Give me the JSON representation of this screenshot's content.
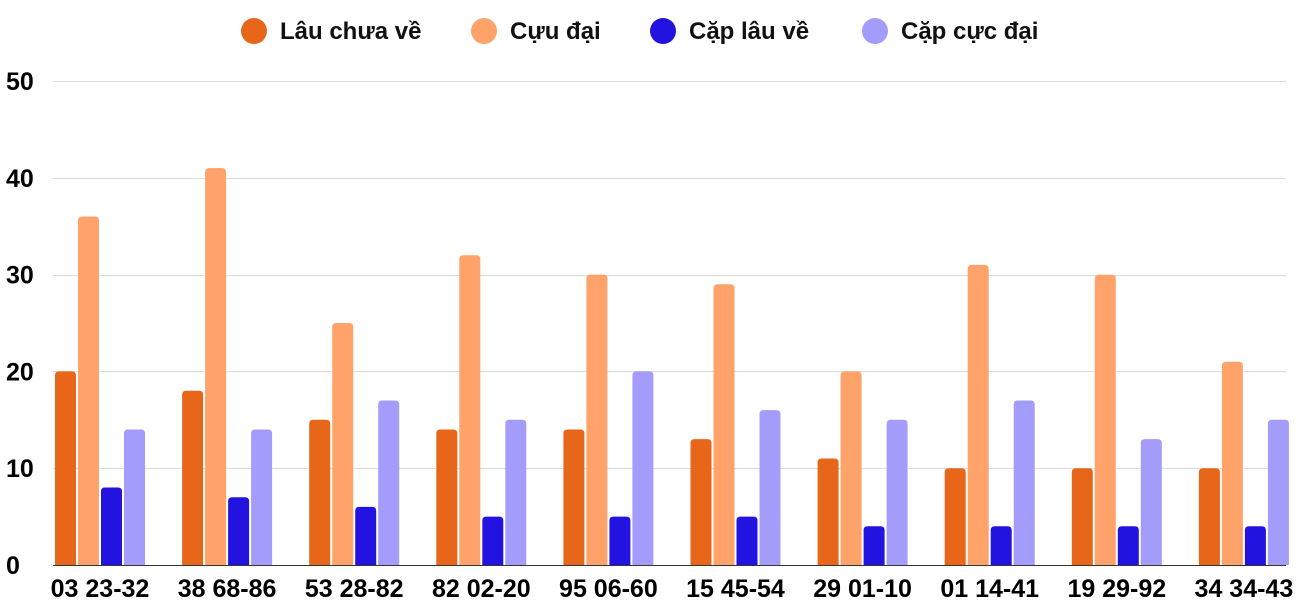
{
  "chart_data": {
    "type": "bar",
    "title": "",
    "xlabel": "",
    "ylabel": "",
    "ylim": [
      0,
      50
    ],
    "yticks": [
      0,
      10,
      20,
      30,
      40,
      50
    ],
    "grid": true,
    "legend_position": "top-center",
    "categories": [
      "03 23-32",
      "38 68-86",
      "53 28-82",
      "82 02-20",
      "95 06-60",
      "15 45-54",
      "29 01-10",
      "01 14-41",
      "19 29-92",
      "34 34-43"
    ],
    "series": [
      {
        "name": "Lâu chưa về",
        "color": "#e8661a",
        "values": [
          20,
          18,
          15,
          14,
          14,
          13,
          11,
          10,
          10,
          10
        ]
      },
      {
        "name": "Cựu đại",
        "color": "#ffa36b",
        "values": [
          36,
          41,
          25,
          32,
          30,
          29,
          20,
          31,
          30,
          21
        ]
      },
      {
        "name": "Cặp lâu về",
        "color": "#2313e0",
        "values": [
          8,
          7,
          6,
          5,
          5,
          5,
          4,
          4,
          4,
          4
        ]
      },
      {
        "name": "Cặp cực đại",
        "color": "#a39cfa",
        "values": [
          14,
          14,
          17,
          15,
          20,
          16,
          15,
          17,
          13,
          15
        ]
      }
    ]
  }
}
